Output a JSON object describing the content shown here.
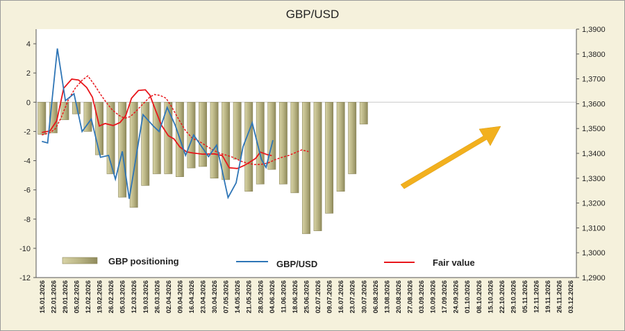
{
  "chart_data": {
    "type": "bar+line",
    "title": "GBP/USD",
    "colors": {
      "bars": "#b9b484",
      "bars_dark": "#8a8558",
      "gbpusd_line": "#2e75b6",
      "fair_value_line": "#e8161b",
      "arrow": "#f2b01e",
      "background": "#f5f1dc"
    },
    "y_left": {
      "ylim": [
        -12,
        5
      ],
      "ticks": [
        4,
        2,
        0,
        -2,
        -4,
        -6,
        -8,
        -10,
        -12
      ]
    },
    "y_right": {
      "ylim": [
        1.29,
        1.39
      ],
      "ticks": [
        "1,3900",
        "1,3800",
        "1,3700",
        "1,3600",
        "1,3500",
        "1,3400",
        "1,3300",
        "1,3200",
        "1,3100",
        "1,3000",
        "1,2900"
      ]
    },
    "x_labels": [
      "15.01.2026",
      "22.01.2026",
      "29.01.2026",
      "05.02.2026",
      "12.02.2026",
      "19.02.2026",
      "26.02.2026",
      "05.03.2026",
      "12.03.2026",
      "19.03.2026",
      "26.03.2026",
      "02.04.2026",
      "09.04.2026",
      "16.04.2026",
      "23.04.2026",
      "30.04.2026",
      "07.05.2026",
      "14.05.2026",
      "21.05.2026",
      "28.05.2026",
      "04.06.2026",
      "11.06.2026",
      "18.06.2026",
      "25.06.2026",
      "02.07.2026",
      "09.07.2026",
      "16.07.2026",
      "23.07.2026",
      "30.07.2026",
      "06.08.2026",
      "13.08.2026",
      "20.08.2026",
      "27.08.2026",
      "03.09.2026",
      "10.09.2026",
      "17.09.2026",
      "24.09.2026",
      "01.10.2026",
      "08.10.2026",
      "15.10.2026",
      "22.10.2026",
      "29.10.2026",
      "05.11.2026",
      "12.11.2026",
      "19.11.2026",
      "26.11.2026",
      "03.12.2026"
    ],
    "series": [
      {
        "name": "GBP positioning",
        "type": "bar",
        "axis": "left",
        "values": [
          -2.2,
          -2.1,
          -1.2,
          -0.8,
          -2.0,
          -3.6,
          -4.9,
          -6.5,
          -7.2,
          -5.7,
          -4.9,
          -4.9,
          -5.1,
          -4.5,
          -4.4,
          -5.2,
          -5.3,
          -3.9,
          -6.1,
          -5.6,
          -4.6,
          -5.6,
          -6.2,
          -9.0,
          -8.8,
          -7.6,
          -6.1,
          -4.9,
          -1.5
        ]
      },
      {
        "name": "GBP/USD",
        "type": "line",
        "axis": "right",
        "points": [
          [
            0,
            1.3448
          ],
          [
            0.5,
            1.3442
          ],
          [
            1.35,
            1.3822
          ],
          [
            2.05,
            1.3612
          ],
          [
            2.8,
            1.364
          ],
          [
            3.5,
            1.3488
          ],
          [
            4.3,
            1.3538
          ],
          [
            5.1,
            1.3384
          ],
          [
            5.8,
            1.3392
          ],
          [
            6.4,
            1.3296
          ],
          [
            7.0,
            1.3408
          ],
          [
            7.6,
            1.3217
          ],
          [
            8.8,
            1.3556
          ],
          [
            9.7,
            1.351
          ],
          [
            10.2,
            1.3488
          ],
          [
            10.9,
            1.3585
          ],
          [
            11.6,
            1.3513
          ],
          [
            12.5,
            1.3392
          ],
          [
            13.2,
            1.3474
          ],
          [
            14.5,
            1.3387
          ],
          [
            15.2,
            1.3433
          ],
          [
            16.2,
            1.3222
          ],
          [
            16.9,
            1.3281
          ],
          [
            17.5,
            1.3427
          ],
          [
            18.3,
            1.3523
          ],
          [
            19.1,
            1.3376
          ],
          [
            19.5,
            1.3343
          ],
          [
            20.1,
            1.3453
          ]
        ]
      },
      {
        "name": "Fair value",
        "type": "line",
        "axis": "right",
        "points": [
          [
            0,
            1.3484
          ],
          [
            0.7,
            1.349
          ],
          [
            1.3,
            1.3532
          ],
          [
            1.9,
            1.3662
          ],
          [
            2.6,
            1.3699
          ],
          [
            3.2,
            1.3695
          ],
          [
            3.9,
            1.3665
          ],
          [
            4.4,
            1.3626
          ],
          [
            5.0,
            1.351
          ],
          [
            5.5,
            1.352
          ],
          [
            6.2,
            1.3512
          ],
          [
            6.8,
            1.3524
          ],
          [
            7.3,
            1.3552
          ],
          [
            7.8,
            1.3622
          ],
          [
            8.4,
            1.3653
          ],
          [
            9.0,
            1.3656
          ],
          [
            9.4,
            1.3634
          ],
          [
            9.9,
            1.3572
          ],
          [
            10.4,
            1.3514
          ],
          [
            11.0,
            1.3471
          ],
          [
            11.5,
            1.3458
          ],
          [
            12.0,
            1.3426
          ],
          [
            12.6,
            1.3406
          ],
          [
            13.2,
            1.3401
          ],
          [
            14.0,
            1.3397
          ],
          [
            15.0,
            1.3398
          ],
          [
            15.7,
            1.3391
          ],
          [
            16.3,
            1.3342
          ],
          [
            17.0,
            1.3339
          ],
          [
            17.6,
            1.3351
          ],
          [
            18.1,
            1.3365
          ],
          [
            18.6,
            1.338
          ],
          [
            19.0,
            1.3405
          ],
          [
            19.6,
            1.3395
          ],
          [
            20.0,
            1.3391
          ]
        ]
      },
      {
        "name": "Fair value forecast",
        "type": "line",
        "axis": "right",
        "dashed": true,
        "points": [
          [
            0,
            1.3474
          ],
          [
            0.7,
            1.3483
          ],
          [
            1.2,
            1.35
          ],
          [
            1.7,
            1.3546
          ],
          [
            2.3,
            1.3615
          ],
          [
            2.9,
            1.3662
          ],
          [
            3.5,
            1.3694
          ],
          [
            4.0,
            1.3712
          ],
          [
            4.6,
            1.3674
          ],
          [
            5.1,
            1.3638
          ],
          [
            5.6,
            1.3605
          ],
          [
            6.1,
            1.3576
          ],
          [
            6.7,
            1.3553
          ],
          [
            7.2,
            1.3541
          ],
          [
            7.7,
            1.3548
          ],
          [
            8.2,
            1.357
          ],
          [
            8.8,
            1.3599
          ],
          [
            9.4,
            1.3627
          ],
          [
            9.8,
            1.3637
          ],
          [
            10.3,
            1.3633
          ],
          [
            10.8,
            1.3622
          ],
          [
            11.3,
            1.3587
          ],
          [
            11.9,
            1.3537
          ],
          [
            12.5,
            1.3491
          ],
          [
            13.1,
            1.346
          ],
          [
            13.7,
            1.3448
          ],
          [
            14.3,
            1.343
          ],
          [
            14.9,
            1.3413
          ],
          [
            15.5,
            1.34
          ],
          [
            16.1,
            1.3392
          ],
          [
            16.7,
            1.3383
          ],
          [
            17.3,
            1.3369
          ],
          [
            17.9,
            1.336
          ],
          [
            18.5,
            1.3355
          ],
          [
            19.1,
            1.3356
          ],
          [
            19.7,
            1.3362
          ],
          [
            20.3,
            1.3375
          ],
          [
            20.9,
            1.3384
          ],
          [
            21.5,
            1.3392
          ],
          [
            22.1,
            1.3404
          ],
          [
            22.6,
            1.3414
          ],
          [
            23.2,
            1.3407
          ]
        ]
      }
    ],
    "legend": {
      "placement": "bottom-inside",
      "entries": [
        "GBP positioning",
        "GBP/USD",
        "Fair value"
      ]
    },
    "annotation": "up-arrow-icon"
  }
}
